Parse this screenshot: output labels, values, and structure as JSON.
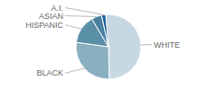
{
  "chart_data": {
    "type": "pie",
    "categories": [
      "WHITE",
      "BLACK",
      "HISPANIC",
      "ASIAN",
      "A.I."
    ],
    "values": [
      50,
      27,
      14,
      5,
      2
    ],
    "colors": [
      "#c8d8e3",
      "#8aafc0",
      "#5a8fa8",
      "#4a80a0",
      "#2060a0"
    ]
  }
}
